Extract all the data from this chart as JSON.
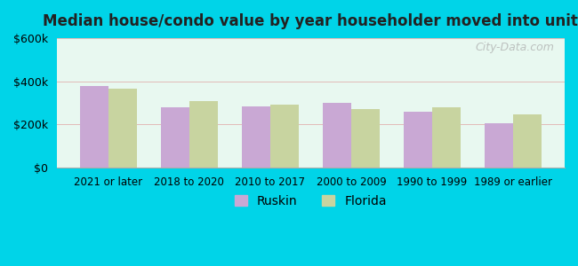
{
  "title": "Median house/condo value by year householder moved into unit",
  "categories": [
    "2021 or later",
    "2018 to 2020",
    "2010 to 2017",
    "2000 to 2009",
    "1990 to 1999",
    "1989 or earlier"
  ],
  "ruskin_values": [
    380000,
    280000,
    283000,
    300000,
    258000,
    205000
  ],
  "florida_values": [
    365000,
    310000,
    290000,
    272000,
    278000,
    248000
  ],
  "ruskin_color": "#c9a8d4",
  "florida_color": "#c8d4a0",
  "background_outer": "#00d4e8",
  "background_inner_top": "#e8f8f0",
  "background_inner_bottom": "#d8f0e0",
  "ylim": [
    0,
    600000
  ],
  "yticks": [
    0,
    200000,
    400000,
    600000
  ],
  "bar_width": 0.35,
  "legend_labels": [
    "Ruskin",
    "Florida"
  ],
  "watermark": "City-Data.com"
}
